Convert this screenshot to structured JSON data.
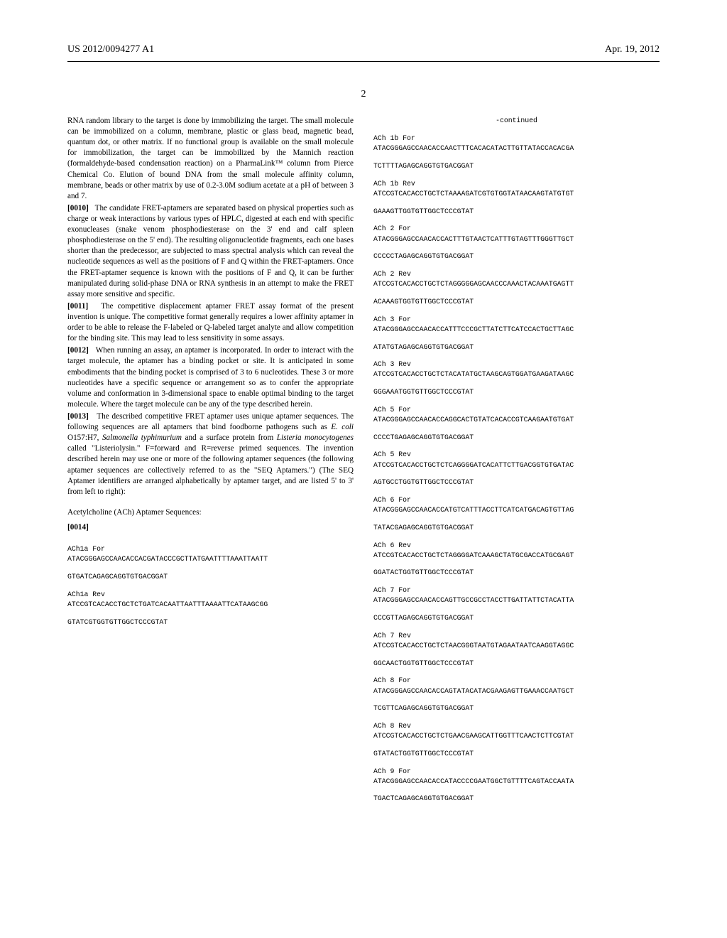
{
  "header": {
    "pub_number": "US 2012/0094277 A1",
    "pub_date": "Apr. 19, 2012",
    "page_number": "2"
  },
  "left_column": {
    "para_009_cont": "RNA random library to the target is done by immobilizing the target. The small molecule can be immobilized on a column, membrane, plastic or glass bead, magnetic bead, quantum dot, or other matrix. If no functional group is available on the small molecule for immobilization, the target can be immobilized by the Mannich reaction (formaldehyde-based condensation reaction) on a PharmaLink™ column from Pierce Chemical Co. Elution of bound DNA from the small molecule affinity column, membrane, beads or other matrix by use of 0.2-3.0M sodium acetate at a pH of between 3 and 7.",
    "para_010_num": "[0010]",
    "para_010": "The candidate FRET-aptamers are separated based on physical properties such as charge or weak interactions by various types of HPLC, digested at each end with specific exonucleases (snake venom phosphodiesterase on the 3' end and calf spleen phosphodiesterase on the 5' end). The resulting oligonucleotide fragments, each one bases shorter than the predecessor, are subjected to mass spectral analysis which can reveal the nucleotide sequences as well as the positions of F and Q within the FRET-aptamers. Once the FRET-aptamer sequence is known with the positions of F and Q, it can be further manipulated during solid-phase DNA or RNA synthesis in an attempt to make the FRET assay more sensitive and specific.",
    "para_011_num": "[0011]",
    "para_011": "The competitive displacement aptamer FRET assay format of the present invention is unique. The competitive format generally requires a lower affinity aptamer in order to be able to release the F-labeled or Q-labeled target analyte and allow competition for the binding site. This may lead to less sensitivity in some assays.",
    "para_012_num": "[0012]",
    "para_012": "When running an assay, an aptamer is incorporated. In order to interact with the target molecule, the aptamer has a binding pocket or site. It is anticipated in some embodiments that the binding pocket is comprised of 3 to 6 nucleotides. These 3 or more nucleotides have a specific sequence or arrangement so as to confer the appropriate volume and conformation in 3-dimensional space to enable optimal binding to the target molecule. Where the target molecule can be any of the type described herein.",
    "para_013_num": "[0013]",
    "para_013_part1": "The described competitive FRET aptamer uses unique aptamer sequences. The following sequences are all aptamers that bind foodborne pathogens such as ",
    "para_013_ecoli": "E. coli",
    "para_013_part2": " O157:H7, ",
    "para_013_salmonella": "Salmonella typhimurium",
    "para_013_part3": " and a surface protein from ",
    "para_013_listeria": "Listeria monocytogenes",
    "para_013_part4": " called \"Listeriolysin.\" F=forward and R=reverse primed sequences. The invention described herein may use one or more of the following aptamer sequences (the following aptamer sequences are collectively referred to as the \"SEQ Aptamers.\") (The SEQ Aptamer identifiers are arranged alphabetically by aptamer target, and are listed 5' to 3' from left to right):",
    "section_title": "Acetylcholine (ACh) Aptamer Sequences:",
    "para_014_num": "[0014]",
    "sequences": [
      {
        "label": "ACh1a For",
        "seq1": "ATACGGGAGCCAACACCACGATACCCGCTTATGAATTTTAAATTAATT",
        "seq2": "GTGATCAGAGCAGGTGTGACGGAT"
      },
      {
        "label": "ACh1a Rev",
        "seq1": "ATCCGTCACACCTGCTCTGATCACAATTAATTTAAAATTCATAAGCGG",
        "seq2": "GTATCGTGGTGTTGGCTCCCGTAT"
      }
    ]
  },
  "right_column": {
    "continued_label": "-continued",
    "sequences": [
      {
        "label": "ACh 1b For",
        "seq1": "ATACGGGAGCCAACACCAACTTTCACACATACTTGTTATACCACACGA",
        "seq2": "TCTTTTAGAGCAGGTGTGACGGAT"
      },
      {
        "label": "ACh 1b Rev",
        "seq1": "ATCCGTCACACCTGCTCTAAAAGATCGTGTGGTATAACAAGTATGTGT",
        "seq2": "GAAAGTTGGTGTTGGCTCCCGTAT"
      },
      {
        "label": "ACh 2 For",
        "seq1": "ATACGGGAGCCAACACCACTTTGTAACTCATTTGTAGTTTGGGTTGCT",
        "seq2": "CCCCCTAGAGCAGGTGTGACGGAT"
      },
      {
        "label": "ACh 2 Rev",
        "seq1": "ATCCGTCACACCTGCTCTAGGGGGAGCAACCCAAACTACAAATGAGTT",
        "seq2": "ACAAAGTGGTGTTGGCTCCCGTAT"
      },
      {
        "label": "ACh 3 For",
        "seq1": "ATACGGGAGCCAACACCATTTCCCGCTTATCTTCATCCACTGCTTAGC",
        "seq2": "ATATGTAGAGCAGGTGTGACGGAT"
      },
      {
        "label": "ACh 3 Rev",
        "seq1": "ATCCGTCACACCTGCTCTACATATGCTAAGCAGTGGATGAAGATAAGC",
        "seq2": "GGGAAATGGTGTTGGCTCCCGTAT"
      },
      {
        "label": "ACh 5 For",
        "seq1": "ATACGGGAGCCAACACCAGGCACTGTATCACACCGTCAAGAATGTGAT",
        "seq2": "CCCCTGAGAGCAGGTGTGACGGAT"
      },
      {
        "label": "ACh 5 Rev",
        "seq1": "ATCCGTCACACCTGCTCTCAGGGGATCACATTCTTGACGGTGTGATAC",
        "seq2": "AGTGCCTGGTGTTGGCTCCCGTAT"
      },
      {
        "label": "ACh 6 For",
        "seq1": "ATACGGGAGCCAACACCATGTCATTTACCTTCATCATGACAGTGTTAG",
        "seq2": "TATACGAGAGCAGGTGTGACGGAT"
      },
      {
        "label": "ACh 6 Rev",
        "seq1": "ATCCGTCACACCTGCTCTAGGGGATCAAAGCTATGCGACCATGCGAGT",
        "seq2": "GGATACTGGTGTTGGCTCCCGTAT"
      },
      {
        "label": "ACh 7 For",
        "seq1": "ATACGGGAGCCAACACCAGTTGCCGCCTACCTTGATTATTCTACATTA",
        "seq2": "CCCGTTAGAGCAGGTGTGACGGAT"
      },
      {
        "label": "ACh 7 Rev",
        "seq1": "ATCCGTCACACCTGCTCTAACGGGTAATGTAGAATAATCAAGGTAGGC",
        "seq2": "GGCAACTGGTGTTGGCTCCCGTAT"
      },
      {
        "label": "ACh 8 For",
        "seq1": "ATACGGGAGCCAACACCAGTATACATACGAAGAGTTGAAACCAATGCT",
        "seq2": "TCGTTCAGAGCAGGTGTGACGGAT"
      },
      {
        "label": "ACh 8 Rev",
        "seq1": "ATCCGTCACACCTGCTCTGAACGAAGCATTGGTTTCAACTCTTCGTAT",
        "seq2": "GTATACTGGTGTTGGCTCCCGTAT"
      },
      {
        "label": "ACh 9 For",
        "seq1": "ATACGGGAGCCAACACCATACCCCGAATGGCTGTTTTCAGTACCAATA",
        "seq2": "TGACTCAGAGCAGGTGTGACGGAT"
      }
    ]
  }
}
